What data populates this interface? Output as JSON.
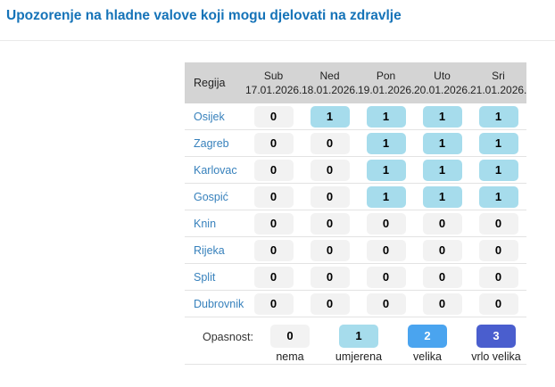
{
  "page": {
    "title": "Upozorenje na hladne valove koji mogu djelovati na zdravlje"
  },
  "table": {
    "region_header": "Regija",
    "columns": [
      {
        "day": "Sub",
        "date": "17.01.2026."
      },
      {
        "day": "Ned",
        "date": "18.01.2026."
      },
      {
        "day": "Pon",
        "date": "19.01.2026."
      },
      {
        "day": "Uto",
        "date": "20.01.2026."
      },
      {
        "day": "Sri",
        "date": "21.01.2026."
      }
    ],
    "rows": [
      {
        "region": "Osijek",
        "values": [
          0,
          1,
          1,
          1,
          1
        ]
      },
      {
        "region": "Zagreb",
        "values": [
          0,
          0,
          1,
          1,
          1
        ]
      },
      {
        "region": "Karlovac",
        "values": [
          0,
          0,
          1,
          1,
          1
        ]
      },
      {
        "region": "Gospić",
        "values": [
          0,
          0,
          1,
          1,
          1
        ]
      },
      {
        "region": "Knin",
        "values": [
          0,
          0,
          0,
          0,
          0
        ]
      },
      {
        "region": "Rijeka",
        "values": [
          0,
          0,
          0,
          0,
          0
        ]
      },
      {
        "region": "Split",
        "values": [
          0,
          0,
          0,
          0,
          0
        ]
      },
      {
        "region": "Dubrovnik",
        "values": [
          0,
          0,
          0,
          0,
          0
        ]
      }
    ]
  },
  "legend": {
    "label": "Opasnost:",
    "items": [
      {
        "value": "0",
        "label": "nema",
        "level": 0
      },
      {
        "value": "1",
        "label": "umjerena",
        "level": 1
      },
      {
        "value": "2",
        "label": "velika",
        "level": 2
      },
      {
        "value": "3",
        "label": "vrlo velika",
        "level": 3
      }
    ]
  },
  "colors": {
    "title": "#1573b8",
    "region_link": "#3781bc",
    "header_bg": "#d4d4d4",
    "level0_bg": "#f2f2f2",
    "level1_bg": "#a6dcec",
    "level2_bg": "#4aa4ef",
    "level3_bg": "#4a5ece",
    "level0_text": "#000000",
    "level1_text": "#000000",
    "level2_text": "#ffffff",
    "level3_text": "#ffffff"
  }
}
